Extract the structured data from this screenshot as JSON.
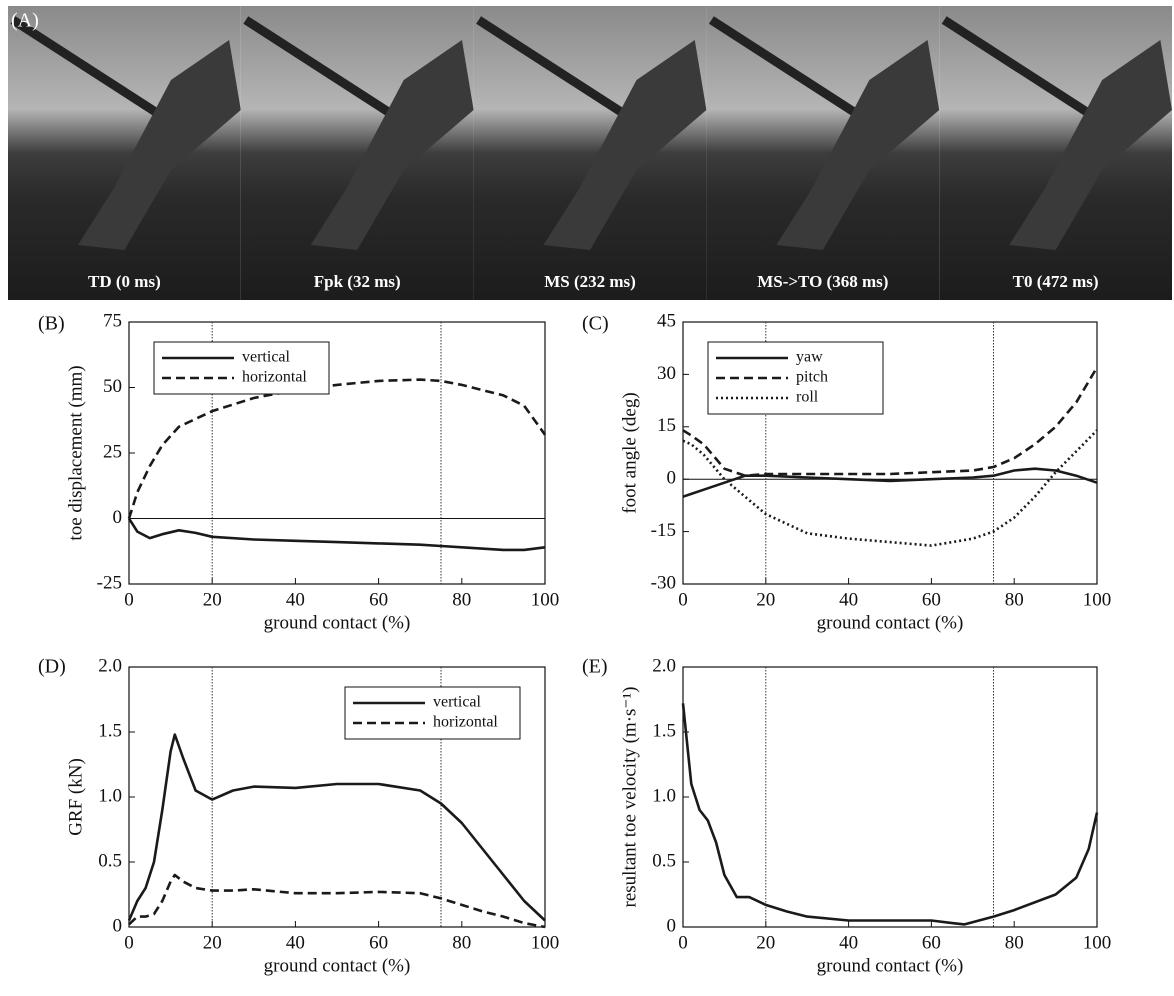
{
  "panel_a": {
    "label": "(A)",
    "frames": [
      "TD (0 ms)",
      "Fpk (32 ms)",
      "MS (232 ms)",
      "MS->TO (368 ms)",
      "T0 (472 ms)"
    ]
  },
  "chart_data": [
    {
      "type": "line",
      "panel_label": "(B)",
      "xlabel": "ground contact (%)",
      "ylabel": "toe displacement (mm)",
      "xlim": [
        0,
        100
      ],
      "xticks": [
        0,
        20,
        40,
        60,
        80,
        100
      ],
      "ylim": [
        -25,
        75
      ],
      "yticks": [
        -25,
        0,
        25,
        50,
        75
      ],
      "vlines": [
        20,
        75
      ],
      "hline": 0,
      "legend": "upper left",
      "x": [
        0,
        2,
        5,
        8,
        12,
        16,
        20,
        30,
        40,
        50,
        60,
        70,
        75,
        80,
        90,
        95,
        100
      ],
      "series": [
        {
          "name": "vertical",
          "color": "#1a1a1a",
          "dash": "solid",
          "values": [
            0,
            -5,
            -7.5,
            -6,
            -4.5,
            -5.5,
            -7,
            -8,
            -8.5,
            -9,
            -9.5,
            -10,
            -10.5,
            -11,
            -12,
            -12,
            -11
          ]
        },
        {
          "name": "horizontal",
          "color": "#1a1a1a",
          "dash": "dashed",
          "values": [
            0,
            10,
            20,
            28,
            35,
            38,
            41,
            46,
            49,
            51,
            52.5,
            53,
            52.5,
            51,
            47,
            43,
            32
          ]
        }
      ]
    },
    {
      "type": "line",
      "panel_label": "(C)",
      "xlabel": "ground contact (%)",
      "ylabel": "foot angle (deg)",
      "xlim": [
        0,
        100
      ],
      "xticks": [
        0,
        20,
        40,
        60,
        80,
        100
      ],
      "ylim": [
        -30,
        45
      ],
      "yticks": [
        -30,
        -15,
        0,
        15,
        30,
        45
      ],
      "vlines": [
        20,
        75
      ],
      "hline": 0,
      "legend": "upper left",
      "x": [
        0,
        2,
        5,
        10,
        15,
        20,
        30,
        40,
        50,
        60,
        70,
        75,
        80,
        85,
        90,
        95,
        100
      ],
      "series": [
        {
          "name": "yaw",
          "color": "#1a1a1a",
          "dash": "solid",
          "values": [
            -5,
            -4.2,
            -3,
            -1,
            1,
            1,
            0.5,
            0,
            -0.5,
            0,
            0.5,
            1,
            2.5,
            3,
            2.5,
            1,
            -1
          ]
        },
        {
          "name": "pitch",
          "color": "#1a1a1a",
          "dash": "dashed",
          "values": [
            14,
            12.5,
            10,
            3,
            1,
            1.5,
            1.5,
            1.5,
            1.5,
            2,
            2.5,
            3.5,
            6,
            10,
            15,
            22,
            32
          ]
        },
        {
          "name": "roll",
          "color": "#1a1a1a",
          "dash": "dotted",
          "values": [
            11,
            10,
            7,
            0,
            -5,
            -10,
            -15.5,
            -17,
            -18,
            -19,
            -17,
            -15,
            -11,
            -5,
            2,
            8,
            14
          ]
        }
      ]
    },
    {
      "type": "line",
      "panel_label": "(D)",
      "xlabel": "ground contact (%)",
      "ylabel": "GRF (kN)",
      "xlim": [
        0,
        100
      ],
      "xticks": [
        0,
        20,
        40,
        60,
        80,
        100
      ],
      "ylim": [
        0,
        2
      ],
      "yticks": [
        0,
        0.5,
        {
          "value": 1,
          "label": "1.0"
        },
        1.5,
        {
          "value": 2,
          "label": "2.0"
        }
      ],
      "vlines": [
        20,
        75
      ],
      "legend": "upper right",
      "x": [
        0,
        2,
        4,
        6,
        8,
        10,
        11,
        13,
        16,
        20,
        25,
        30,
        40,
        50,
        60,
        70,
        75,
        80,
        85,
        90,
        95,
        100
      ],
      "series": [
        {
          "name": "vertical",
          "color": "#1a1a1a",
          "dash": "solid",
          "values": [
            0.05,
            0.2,
            0.3,
            0.5,
            0.9,
            1.35,
            1.48,
            1.3,
            1.05,
            0.98,
            1.05,
            1.08,
            1.07,
            1.1,
            1.1,
            1.05,
            0.95,
            0.8,
            0.6,
            0.4,
            0.2,
            0.05
          ]
        },
        {
          "name": "horizontal",
          "color": "#1a1a1a",
          "dash": "dashed",
          "values": [
            0.02,
            0.08,
            0.08,
            0.1,
            0.2,
            0.35,
            0.4,
            0.35,
            0.3,
            0.28,
            0.28,
            0.29,
            0.26,
            0.26,
            0.27,
            0.26,
            0.22,
            0.17,
            0.12,
            0.08,
            0.03,
            0
          ]
        }
      ]
    },
    {
      "type": "line",
      "panel_label": "(E)",
      "xlabel": "ground contact (%)",
      "ylabel": "resultant toe velocity (m·s⁻¹)",
      "xlim": [
        0,
        100
      ],
      "xticks": [
        0,
        20,
        40,
        60,
        80,
        100
      ],
      "ylim": [
        0,
        2
      ],
      "yticks": [
        0,
        0.5,
        {
          "value": 1,
          "label": "1.0"
        },
        1.5,
        {
          "value": 2,
          "label": "2.0"
        }
      ],
      "vlines": [
        20,
        75
      ],
      "x": [
        0,
        2,
        4,
        6,
        8,
        10,
        13,
        16,
        20,
        25,
        30,
        40,
        50,
        60,
        65,
        68,
        75,
        80,
        90,
        95,
        98,
        100
      ],
      "series": [
        {
          "color": "#1a1a1a",
          "dash": "solid",
          "values": [
            1.72,
            1.1,
            0.9,
            0.82,
            0.65,
            0.4,
            0.23,
            0.23,
            0.17,
            0.12,
            0.08,
            0.05,
            0.05,
            0.05,
            0.03,
            0.02,
            0.08,
            0.13,
            0.25,
            0.38,
            0.6,
            0.88
          ]
        }
      ]
    }
  ]
}
